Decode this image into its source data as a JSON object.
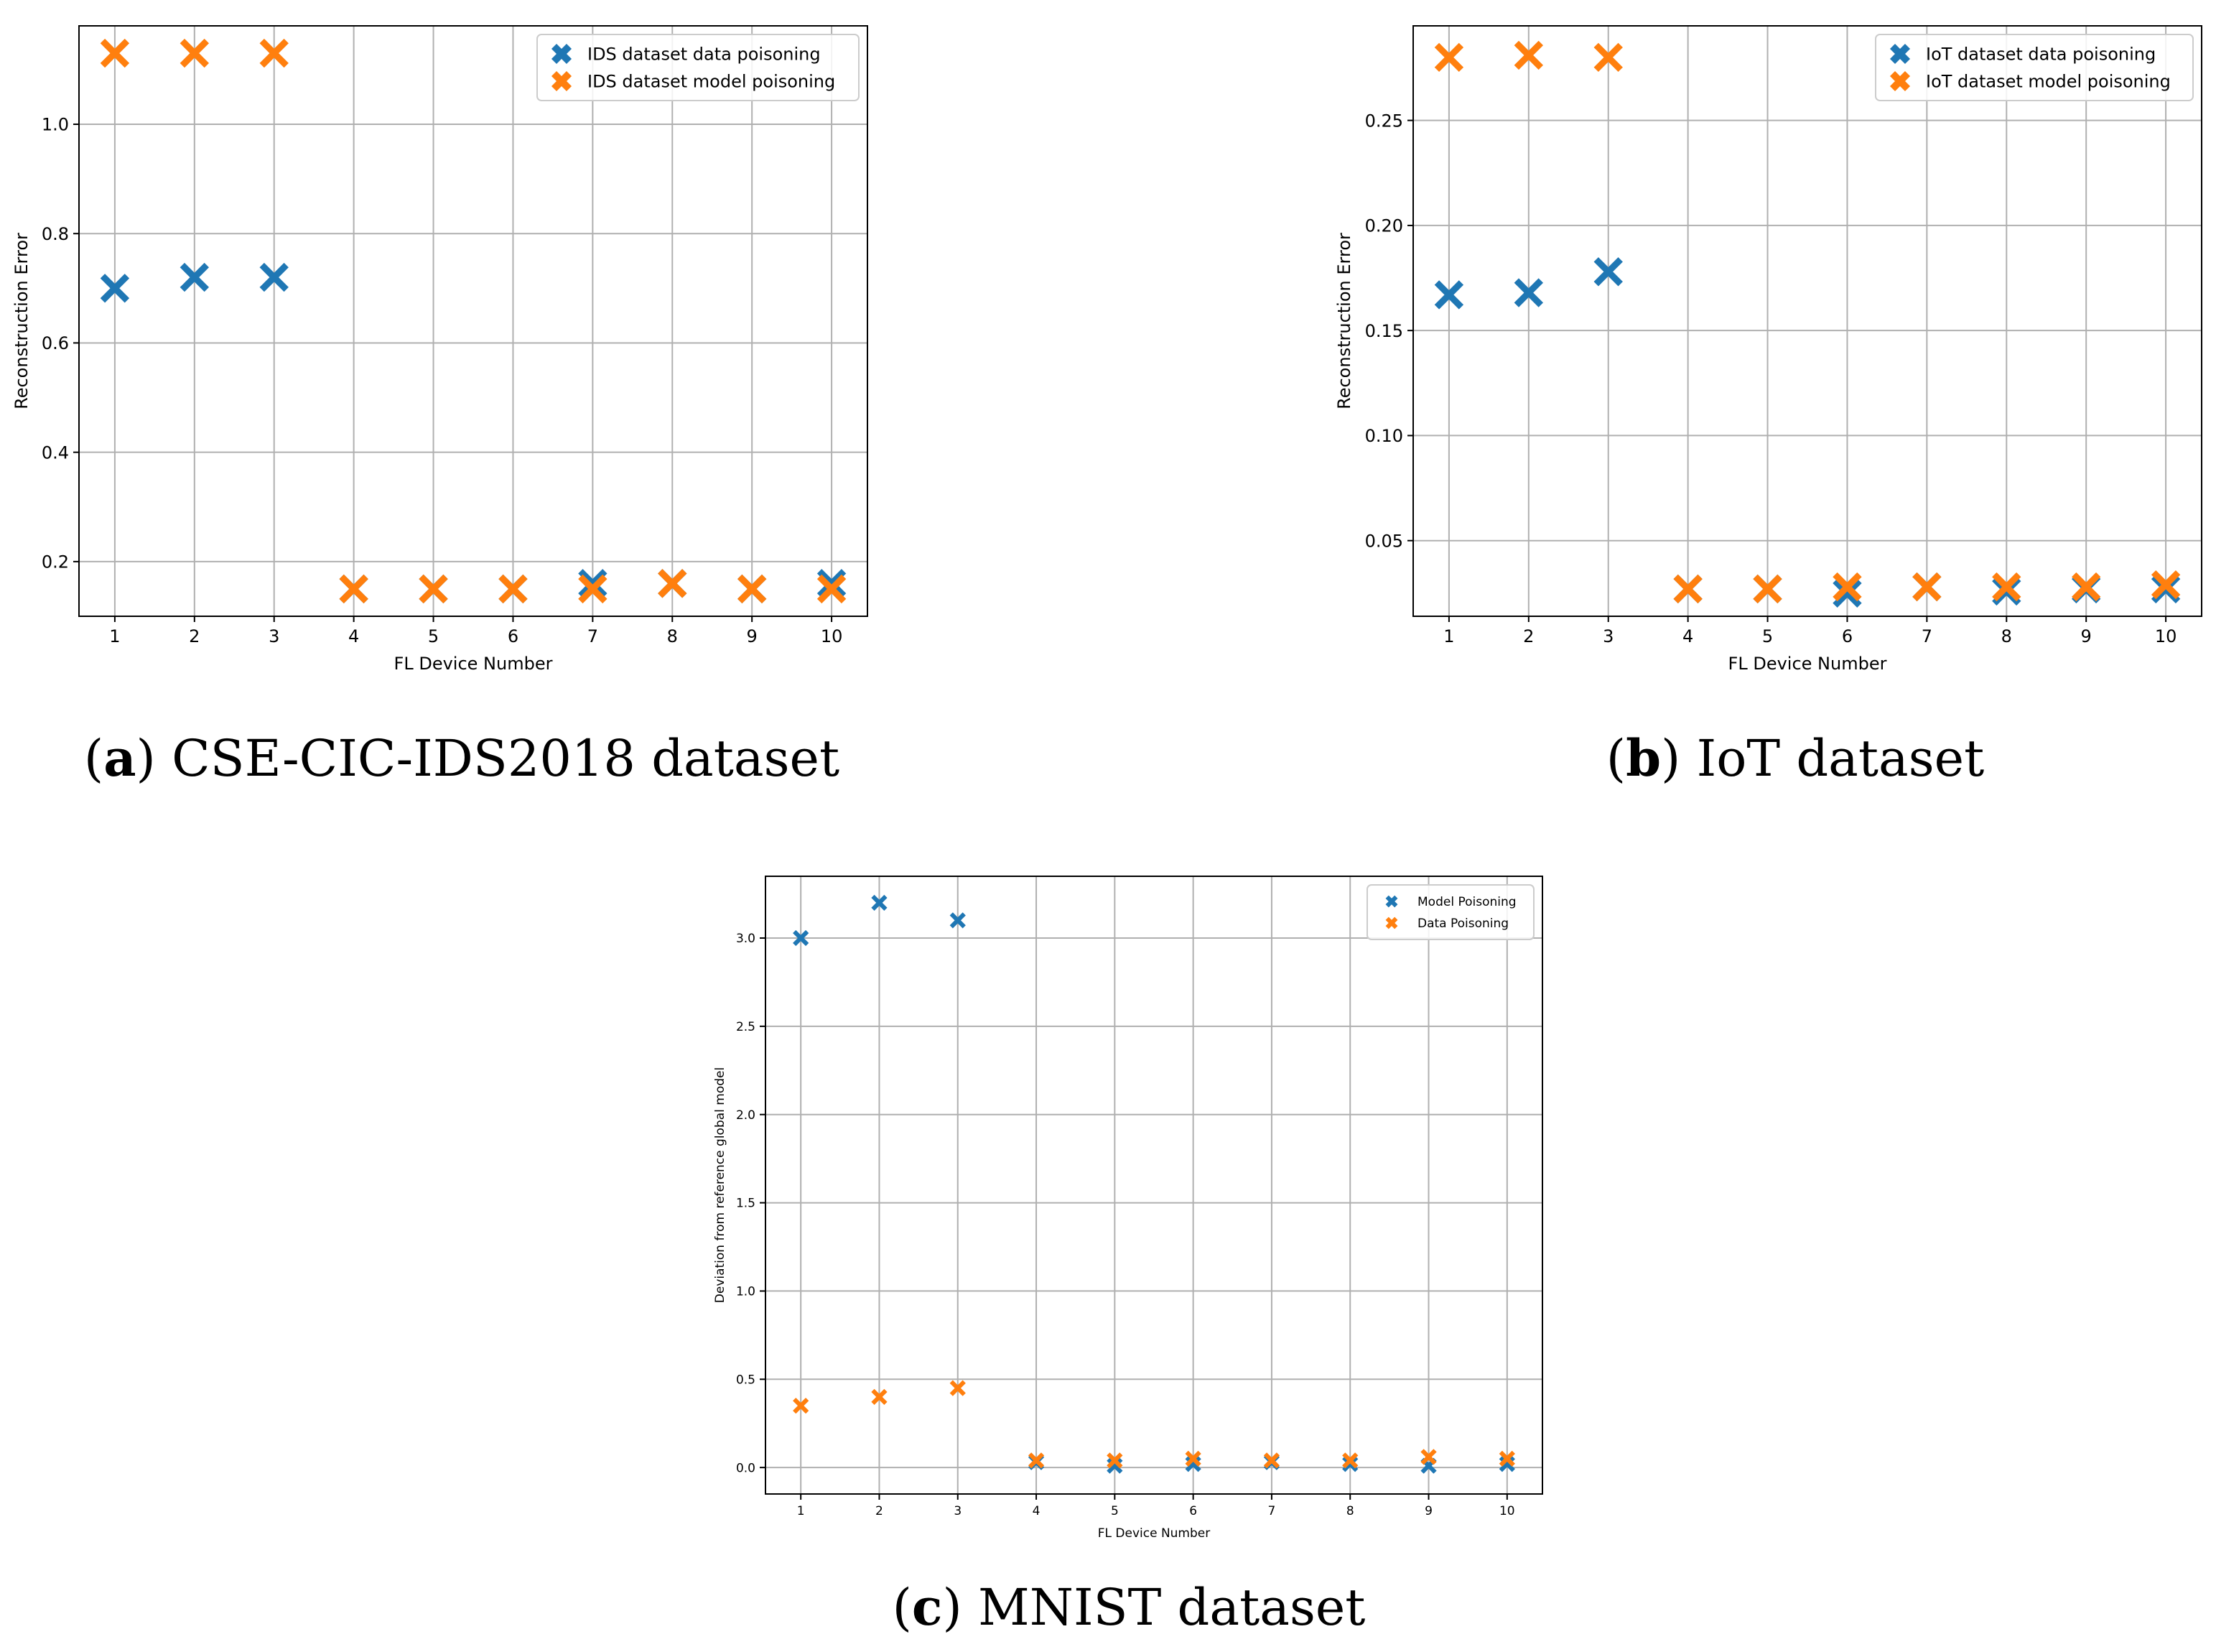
{
  "colors": {
    "blue": "#1f77b4",
    "orange": "#ff7f0e",
    "grid": "#b0b0b0",
    "axis": "#000000"
  },
  "chart_data": [
    {
      "type": "scatter",
      "caption": {
        "letter": "a",
        "open": "(",
        "close": ")",
        "text": " CSE-CIC-IDS2018 dataset"
      },
      "xlabel": "FL Device Number",
      "ylabel": "Reconstruction Error",
      "xlim": [
        0.55,
        10.45
      ],
      "ylim": [
        0.1,
        1.18
      ],
      "xticks": [
        1,
        2,
        3,
        4,
        5,
        6,
        7,
        8,
        9,
        10
      ],
      "xtick_labels": [
        "1",
        "2",
        "3",
        "4",
        "5",
        "6",
        "7",
        "8",
        "9",
        "10"
      ],
      "yticks": [
        0.2,
        0.4,
        0.6,
        0.8,
        1.0
      ],
      "ytick_labels": [
        "0.2",
        "0.4",
        "0.6",
        "0.8",
        "1.0"
      ],
      "grid": true,
      "legend_position": "top-right",
      "x": [
        1,
        2,
        3,
        4,
        5,
        6,
        7,
        8,
        9,
        10
      ],
      "series": [
        {
          "name": "IDS dataset data poisoning",
          "color": "#1f77b4",
          "values": [
            0.7,
            0.72,
            0.72,
            0.15,
            0.15,
            0.15,
            0.16,
            0.16,
            0.15,
            0.16
          ]
        },
        {
          "name": "IDS dataset model poisoning",
          "color": "#ff7f0e",
          "values": [
            1.13,
            1.13,
            1.13,
            0.15,
            0.15,
            0.15,
            0.15,
            0.16,
            0.15,
            0.15
          ]
        }
      ]
    },
    {
      "type": "scatter",
      "caption": {
        "letter": "b",
        "open": "(",
        "close": ")",
        "text": " IoT dataset"
      },
      "xlabel": "FL Device Number",
      "ylabel": "Reconstruction Error",
      "xlim": [
        0.55,
        10.45
      ],
      "ylim": [
        0.014,
        0.295
      ],
      "xticks": [
        1,
        2,
        3,
        4,
        5,
        6,
        7,
        8,
        9,
        10
      ],
      "xtick_labels": [
        "1",
        "2",
        "3",
        "4",
        "5",
        "6",
        "7",
        "8",
        "9",
        "10"
      ],
      "yticks": [
        0.05,
        0.1,
        0.15,
        0.2,
        0.25
      ],
      "ytick_labels": [
        "0.05",
        "0.10",
        "0.15",
        "0.20",
        "0.25"
      ],
      "grid": true,
      "legend_position": "top-right",
      "x": [
        1,
        2,
        3,
        4,
        5,
        6,
        7,
        8,
        9,
        10
      ],
      "series": [
        {
          "name": "IoT dataset data poisoning",
          "color": "#1f77b4",
          "values": [
            0.167,
            0.168,
            0.178,
            0.027,
            0.027,
            0.025,
            0.028,
            0.026,
            0.027,
            0.027
          ]
        },
        {
          "name": "IoT dataset model poisoning",
          "color": "#ff7f0e",
          "values": [
            0.28,
            0.281,
            0.28,
            0.027,
            0.027,
            0.028,
            0.028,
            0.028,
            0.028,
            0.029
          ]
        }
      ]
    },
    {
      "type": "scatter",
      "caption": {
        "letter": "c",
        "open": "(",
        "close": ")",
        "text": " MNIST dataset"
      },
      "xlabel": "FL Device Number",
      "ylabel": "Deviation from reference global model",
      "xlim": [
        0.55,
        10.45
      ],
      "ylim": [
        -0.15,
        3.35
      ],
      "xticks": [
        1,
        2,
        3,
        4,
        5,
        6,
        7,
        8,
        9,
        10
      ],
      "xtick_labels": [
        "1",
        "2",
        "3",
        "4",
        "5",
        "6",
        "7",
        "8",
        "9",
        "10"
      ],
      "yticks": [
        0.0,
        0.5,
        1.0,
        1.5,
        2.0,
        2.5,
        3.0
      ],
      "ytick_labels": [
        "0.0",
        "0.5",
        "1.0",
        "1.5",
        "2.0",
        "2.5",
        "3.0"
      ],
      "grid": true,
      "legend_position": "top-right",
      "x": [
        1,
        2,
        3,
        4,
        5,
        6,
        7,
        8,
        9,
        10
      ],
      "series": [
        {
          "name": "Model Poisoning",
          "color": "#1f77b4",
          "values": [
            3.0,
            3.2,
            3.1,
            0.03,
            0.01,
            0.02,
            0.03,
            0.02,
            0.01,
            0.02
          ]
        },
        {
          "name": "Data Poisoning",
          "color": "#ff7f0e",
          "values": [
            0.35,
            0.4,
            0.45,
            0.04,
            0.04,
            0.05,
            0.04,
            0.04,
            0.06,
            0.05
          ]
        }
      ]
    }
  ]
}
